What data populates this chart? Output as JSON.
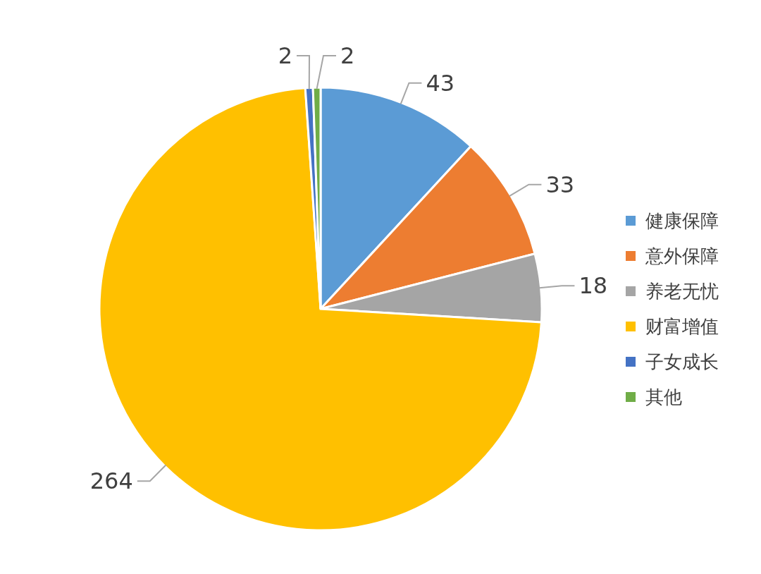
{
  "chart_data": {
    "type": "pie",
    "categories": [
      "健康保障",
      "意外保障",
      "养老无忧",
      "财富增值",
      "子女成长",
      "其他"
    ],
    "values": [
      43,
      33,
      18,
      264,
      2,
      2
    ],
    "colors": [
      "#5b9bd5",
      "#ed7d31",
      "#a5a5a5",
      "#ffc000",
      "#4472c4",
      "#70ad47"
    ],
    "data_labels": true,
    "legend": "right"
  }
}
